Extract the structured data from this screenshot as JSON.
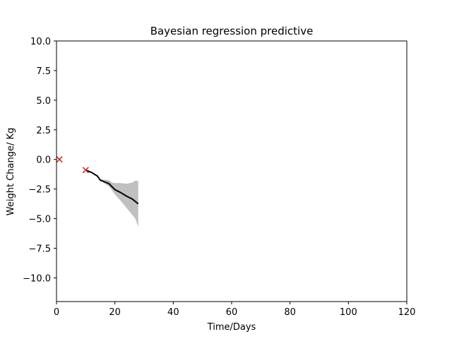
{
  "chart_data": {
    "type": "line",
    "title": "Bayesian regression predictive",
    "xlabel": "Time/Days",
    "ylabel": "Weight Change/ Kg",
    "xlim": [
      0,
      120
    ],
    "ylim": [
      -12,
      10
    ],
    "xticks": [
      0,
      20,
      40,
      60,
      80,
      100,
      120
    ],
    "yticks": [
      -10.0,
      -7.5,
      -5.0,
      -2.5,
      0.0,
      2.5,
      5.0,
      7.5,
      10.0
    ],
    "xtick_labels": [
      "0",
      "20",
      "40",
      "60",
      "80",
      "100",
      "120"
    ],
    "ytick_labels": [
      "−10.0",
      "−7.5",
      "−5.0",
      "−2.5",
      "0.0",
      "2.5",
      "5.0",
      "7.5",
      "10.0"
    ],
    "grid": false,
    "series": [
      {
        "kind": "scatter",
        "marker": "x",
        "color": "#d62728",
        "x": [
          1,
          10
        ],
        "y": [
          0.0,
          -0.9
        ]
      },
      {
        "kind": "line",
        "color": "#000000",
        "x": [
          10,
          12,
          14,
          15,
          16,
          18,
          19,
          20,
          22,
          24,
          26,
          28
        ],
        "y": [
          -0.9,
          -1.1,
          -1.4,
          -1.75,
          -1.85,
          -2.05,
          -2.3,
          -2.55,
          -2.8,
          -3.1,
          -3.35,
          -3.75
        ]
      },
      {
        "kind": "band",
        "color": "#c0c0c0",
        "x": [
          10,
          12,
          14,
          15,
          16,
          18,
          19,
          20,
          22,
          24,
          26,
          27,
          28
        ],
        "upper": [
          -0.9,
          -1.05,
          -1.35,
          -1.65,
          -1.7,
          -1.75,
          -1.95,
          -2.0,
          -2.0,
          -2.05,
          -1.95,
          -1.8,
          -1.8
        ],
        "lower": [
          -0.9,
          -1.15,
          -1.45,
          -1.8,
          -1.95,
          -2.3,
          -2.6,
          -2.95,
          -3.5,
          -4.1,
          -4.7,
          -5.0,
          -5.7
        ]
      }
    ]
  }
}
